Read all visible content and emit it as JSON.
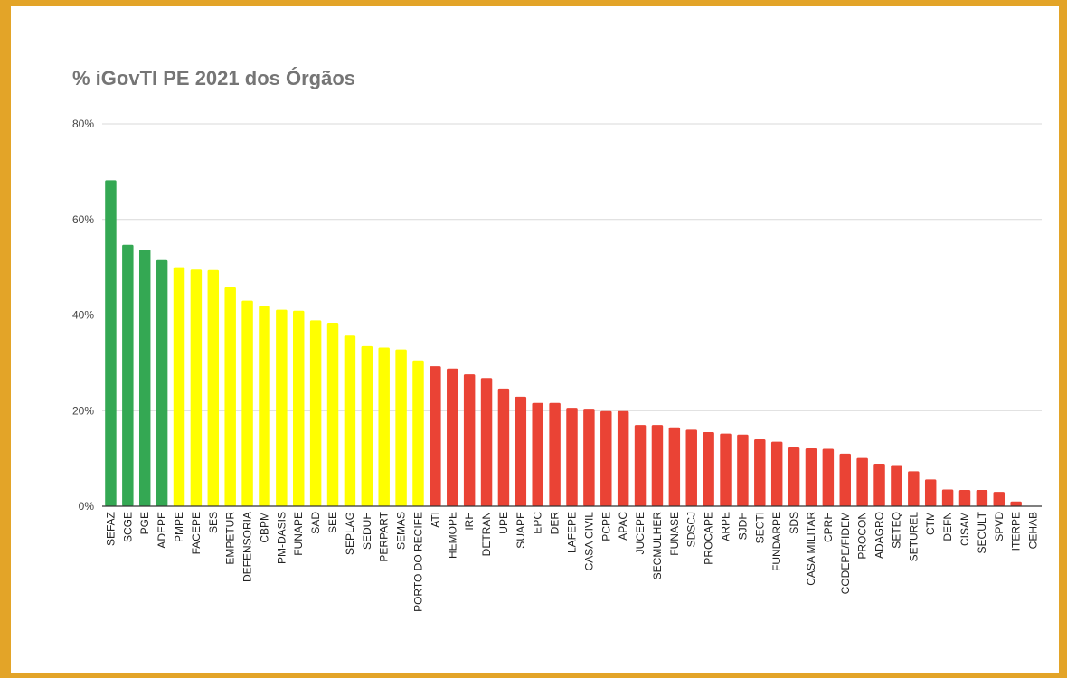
{
  "chart_data": {
    "type": "bar",
    "title": "% iGovTI PE 2021 dos Órgãos",
    "xlabel": "",
    "ylabel": "",
    "ylim": [
      0,
      80
    ],
    "yticks": [
      "0%",
      "20%",
      "40%",
      "60%",
      "80%"
    ],
    "grid": true,
    "categories": [
      "SEFAZ",
      "SCGE",
      "PGE",
      "ADEPE",
      "PMPE",
      "FACEPE",
      "SES",
      "EMPETUR",
      "DEFENSORIA",
      "CBPM",
      "PM-DASIS",
      "FUNAPE",
      "SAD",
      "SEE",
      "SEPLAG",
      "SEDUH",
      "PERPART",
      "SEMAS",
      "PORTO DO RECIFE",
      "ATI",
      "HEMOPE",
      "IRH",
      "DETRAN",
      "UPE",
      "SUAPE",
      "EPC",
      "DER",
      "LAFEPE",
      "CASA CIVIL",
      "PCPE",
      "APAC",
      "JUCEPE",
      "SECMULHER",
      "FUNASE",
      "SDSCJ",
      "PROCAPE",
      "ARPE",
      "SJDH",
      "SECTI",
      "FUNDARPE",
      "SDS",
      "CASA MILITAR",
      "CPRH",
      "CODEPE/FIDEM",
      "PROCON",
      "ADAGRO",
      "SETEQ",
      "SETUREL",
      "CTM",
      "DEFN",
      "CISAM",
      "SECULT",
      "SPVD",
      "ITERPE",
      "CEHAB"
    ],
    "values": [
      68.2,
      54.7,
      53.7,
      51.5,
      50.0,
      49.5,
      49.4,
      45.8,
      43.0,
      41.9,
      41.1,
      40.9,
      38.9,
      38.4,
      35.7,
      33.5,
      33.2,
      32.8,
      30.5,
      29.3,
      28.8,
      27.6,
      26.8,
      24.6,
      22.9,
      21.6,
      21.6,
      20.6,
      20.4,
      19.9,
      19.9,
      17.0,
      17.0,
      16.5,
      16.0,
      15.5,
      15.2,
      15.0,
      14.0,
      13.5,
      12.3,
      12.1,
      12.0,
      11.0,
      10.1,
      8.9,
      8.6,
      7.3,
      5.6,
      3.5,
      3.4,
      3.4,
      3.0,
      1.0,
      0.0
    ],
    "colors": {
      "top": "#34a853",
      "mid": "#ffff00",
      "low": "#ea4335"
    },
    "color_groups": {
      "top_count": 4,
      "mid_count": 15
    },
    "colors_ui": {
      "frame": "#e3a428",
      "grid": "#d9d9d9",
      "axis": "#333333",
      "title": "#757575"
    }
  }
}
